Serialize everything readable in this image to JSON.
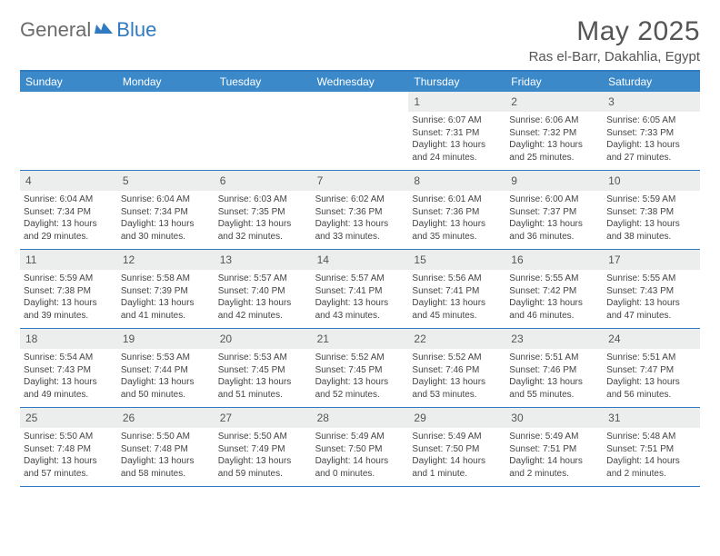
{
  "logo": {
    "part1": "General",
    "part2": "Blue"
  },
  "title": "May 2025",
  "location": "Ras el-Barr, Dakahlia, Egypt",
  "colors": {
    "header_bg": "#3b89c9",
    "rule": "#2f7ac0",
    "daynum_bg": "#eceded",
    "text": "#444444",
    "logo_gray": "#6b6b6b",
    "logo_blue": "#2f7ac0"
  },
  "day_headers": [
    "Sunday",
    "Monday",
    "Tuesday",
    "Wednesday",
    "Thursday",
    "Friday",
    "Saturday"
  ],
  "weeks": [
    [
      {
        "n": "",
        "lines": []
      },
      {
        "n": "",
        "lines": []
      },
      {
        "n": "",
        "lines": []
      },
      {
        "n": "",
        "lines": []
      },
      {
        "n": "1",
        "lines": [
          "Sunrise: 6:07 AM",
          "Sunset: 7:31 PM",
          "Daylight: 13 hours",
          "and 24 minutes."
        ]
      },
      {
        "n": "2",
        "lines": [
          "Sunrise: 6:06 AM",
          "Sunset: 7:32 PM",
          "Daylight: 13 hours",
          "and 25 minutes."
        ]
      },
      {
        "n": "3",
        "lines": [
          "Sunrise: 6:05 AM",
          "Sunset: 7:33 PM",
          "Daylight: 13 hours",
          "and 27 minutes."
        ]
      }
    ],
    [
      {
        "n": "4",
        "lines": [
          "Sunrise: 6:04 AM",
          "Sunset: 7:34 PM",
          "Daylight: 13 hours",
          "and 29 minutes."
        ]
      },
      {
        "n": "5",
        "lines": [
          "Sunrise: 6:04 AM",
          "Sunset: 7:34 PM",
          "Daylight: 13 hours",
          "and 30 minutes."
        ]
      },
      {
        "n": "6",
        "lines": [
          "Sunrise: 6:03 AM",
          "Sunset: 7:35 PM",
          "Daylight: 13 hours",
          "and 32 minutes."
        ]
      },
      {
        "n": "7",
        "lines": [
          "Sunrise: 6:02 AM",
          "Sunset: 7:36 PM",
          "Daylight: 13 hours",
          "and 33 minutes."
        ]
      },
      {
        "n": "8",
        "lines": [
          "Sunrise: 6:01 AM",
          "Sunset: 7:36 PM",
          "Daylight: 13 hours",
          "and 35 minutes."
        ]
      },
      {
        "n": "9",
        "lines": [
          "Sunrise: 6:00 AM",
          "Sunset: 7:37 PM",
          "Daylight: 13 hours",
          "and 36 minutes."
        ]
      },
      {
        "n": "10",
        "lines": [
          "Sunrise: 5:59 AM",
          "Sunset: 7:38 PM",
          "Daylight: 13 hours",
          "and 38 minutes."
        ]
      }
    ],
    [
      {
        "n": "11",
        "lines": [
          "Sunrise: 5:59 AM",
          "Sunset: 7:38 PM",
          "Daylight: 13 hours",
          "and 39 minutes."
        ]
      },
      {
        "n": "12",
        "lines": [
          "Sunrise: 5:58 AM",
          "Sunset: 7:39 PM",
          "Daylight: 13 hours",
          "and 41 minutes."
        ]
      },
      {
        "n": "13",
        "lines": [
          "Sunrise: 5:57 AM",
          "Sunset: 7:40 PM",
          "Daylight: 13 hours",
          "and 42 minutes."
        ]
      },
      {
        "n": "14",
        "lines": [
          "Sunrise: 5:57 AM",
          "Sunset: 7:41 PM",
          "Daylight: 13 hours",
          "and 43 minutes."
        ]
      },
      {
        "n": "15",
        "lines": [
          "Sunrise: 5:56 AM",
          "Sunset: 7:41 PM",
          "Daylight: 13 hours",
          "and 45 minutes."
        ]
      },
      {
        "n": "16",
        "lines": [
          "Sunrise: 5:55 AM",
          "Sunset: 7:42 PM",
          "Daylight: 13 hours",
          "and 46 minutes."
        ]
      },
      {
        "n": "17",
        "lines": [
          "Sunrise: 5:55 AM",
          "Sunset: 7:43 PM",
          "Daylight: 13 hours",
          "and 47 minutes."
        ]
      }
    ],
    [
      {
        "n": "18",
        "lines": [
          "Sunrise: 5:54 AM",
          "Sunset: 7:43 PM",
          "Daylight: 13 hours",
          "and 49 minutes."
        ]
      },
      {
        "n": "19",
        "lines": [
          "Sunrise: 5:53 AM",
          "Sunset: 7:44 PM",
          "Daylight: 13 hours",
          "and 50 minutes."
        ]
      },
      {
        "n": "20",
        "lines": [
          "Sunrise: 5:53 AM",
          "Sunset: 7:45 PM",
          "Daylight: 13 hours",
          "and 51 minutes."
        ]
      },
      {
        "n": "21",
        "lines": [
          "Sunrise: 5:52 AM",
          "Sunset: 7:45 PM",
          "Daylight: 13 hours",
          "and 52 minutes."
        ]
      },
      {
        "n": "22",
        "lines": [
          "Sunrise: 5:52 AM",
          "Sunset: 7:46 PM",
          "Daylight: 13 hours",
          "and 53 minutes."
        ]
      },
      {
        "n": "23",
        "lines": [
          "Sunrise: 5:51 AM",
          "Sunset: 7:46 PM",
          "Daylight: 13 hours",
          "and 55 minutes."
        ]
      },
      {
        "n": "24",
        "lines": [
          "Sunrise: 5:51 AM",
          "Sunset: 7:47 PM",
          "Daylight: 13 hours",
          "and 56 minutes."
        ]
      }
    ],
    [
      {
        "n": "25",
        "lines": [
          "Sunrise: 5:50 AM",
          "Sunset: 7:48 PM",
          "Daylight: 13 hours",
          "and 57 minutes."
        ]
      },
      {
        "n": "26",
        "lines": [
          "Sunrise: 5:50 AM",
          "Sunset: 7:48 PM",
          "Daylight: 13 hours",
          "and 58 minutes."
        ]
      },
      {
        "n": "27",
        "lines": [
          "Sunrise: 5:50 AM",
          "Sunset: 7:49 PM",
          "Daylight: 13 hours",
          "and 59 minutes."
        ]
      },
      {
        "n": "28",
        "lines": [
          "Sunrise: 5:49 AM",
          "Sunset: 7:50 PM",
          "Daylight: 14 hours",
          "and 0 minutes."
        ]
      },
      {
        "n": "29",
        "lines": [
          "Sunrise: 5:49 AM",
          "Sunset: 7:50 PM",
          "Daylight: 14 hours",
          "and 1 minute."
        ]
      },
      {
        "n": "30",
        "lines": [
          "Sunrise: 5:49 AM",
          "Sunset: 7:51 PM",
          "Daylight: 14 hours",
          "and 2 minutes."
        ]
      },
      {
        "n": "31",
        "lines": [
          "Sunrise: 5:48 AM",
          "Sunset: 7:51 PM",
          "Daylight: 14 hours",
          "and 2 minutes."
        ]
      }
    ]
  ]
}
